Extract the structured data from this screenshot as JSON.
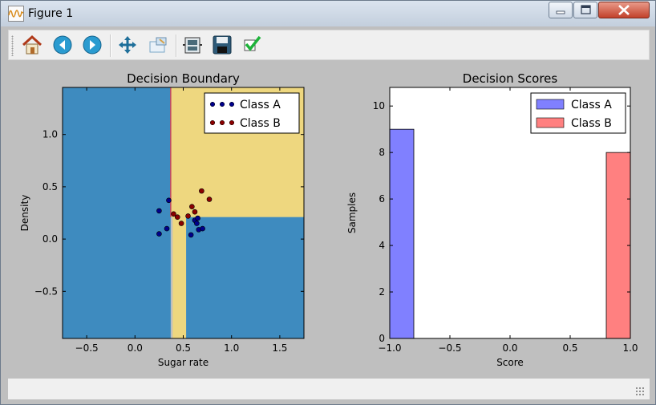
{
  "window": {
    "title": "Figure 1"
  },
  "toolbar": {
    "buttons": [
      {
        "name": "home-button",
        "icon": "home-icon"
      },
      {
        "name": "back-button",
        "icon": "back-arrow-icon"
      },
      {
        "name": "forward-button",
        "icon": "forward-arrow-icon"
      },
      {
        "name": "pan-button",
        "icon": "move-arrows-icon"
      },
      {
        "name": "zoom-button",
        "icon": "zoom-rect-icon"
      },
      {
        "name": "configure-subplots-button",
        "icon": "subplots-icon"
      },
      {
        "name": "save-button",
        "icon": "floppy-disk-icon"
      },
      {
        "name": "edit-parameters-button",
        "icon": "checkmark-icon"
      }
    ]
  },
  "colors": {
    "class_a": "#00008b",
    "class_b": "#8b0000",
    "region_a": "#3e8bbf",
    "region_b": "#eed77f",
    "hist_a": "#8080ff",
    "hist_b": "#ff8080",
    "boundary": "#c7455f"
  },
  "chart_data": [
    {
      "type": "scatter",
      "title": "Decision Boundary",
      "xlabel": "Sugar rate",
      "ylabel": "Density",
      "xlim": [
        -0.75,
        1.75
      ],
      "ylim": [
        -0.95,
        1.45
      ],
      "xticks": [
        -0.5,
        0.0,
        0.5,
        1.0,
        1.5
      ],
      "xtick_labels": [
        "−0.5",
        "0.0",
        "0.5",
        "1.0",
        "1.5"
      ],
      "yticks": [
        -0.5,
        0.0,
        0.5,
        1.0
      ],
      "ytick_labels": [
        "−0.5",
        "0.0",
        "0.5",
        "1.0"
      ],
      "legend_position": "top-right",
      "decision_regions": [
        {
          "class": "A",
          "x": [
            -0.75,
            0.37
          ],
          "y": [
            -0.95,
            1.45
          ]
        },
        {
          "class": "B",
          "x": [
            0.37,
            1.75
          ],
          "y": [
            0.21,
            1.45
          ]
        },
        {
          "class": "B",
          "x": [
            0.39,
            0.53
          ],
          "y": [
            -0.95,
            0.21
          ]
        },
        {
          "class": "A",
          "x": [
            0.53,
            1.75
          ],
          "y": [
            -0.95,
            0.21
          ]
        }
      ],
      "series": [
        {
          "name": "Class A",
          "points": [
            [
              0.25,
              0.27
            ],
            [
              0.35,
              0.37
            ],
            [
              0.33,
              0.1
            ],
            [
              0.25,
              0.05
            ],
            [
              0.58,
              0.04
            ],
            [
              0.62,
              0.18
            ],
            [
              0.65,
              0.2
            ],
            [
              0.66,
              0.09
            ],
            [
              0.7,
              0.1
            ],
            [
              0.64,
              0.15
            ]
          ]
        },
        {
          "name": "Class B",
          "points": [
            [
              0.4,
              0.24
            ],
            [
              0.44,
              0.21
            ],
            [
              0.48,
              0.15
            ],
            [
              0.55,
              0.22
            ],
            [
              0.59,
              0.31
            ],
            [
              0.62,
              0.26
            ],
            [
              0.69,
              0.46
            ],
            [
              0.77,
              0.38
            ]
          ]
        }
      ]
    },
    {
      "type": "bar",
      "title": "Decision Scores",
      "xlabel": "Score",
      "ylabel": "Samples",
      "xlim": [
        -1.0,
        1.0
      ],
      "ylim": [
        0,
        10.8
      ],
      "xticks": [
        -1.0,
        -0.5,
        0.0,
        0.5,
        1.0
      ],
      "xtick_labels": [
        "−1.0",
        "−0.5",
        "0.0",
        "0.5",
        "1.0"
      ],
      "yticks": [
        0,
        2,
        4,
        6,
        8,
        10
      ],
      "ytick_labels": [
        "0",
        "2",
        "4",
        "6",
        "8",
        "10"
      ],
      "legend_position": "top-right",
      "series": [
        {
          "name": "Class A",
          "bins": [
            [
              -1.0,
              -0.8,
              9
            ]
          ]
        },
        {
          "name": "Class B",
          "bins": [
            [
              0.8,
              1.0,
              8
            ]
          ]
        }
      ]
    }
  ]
}
